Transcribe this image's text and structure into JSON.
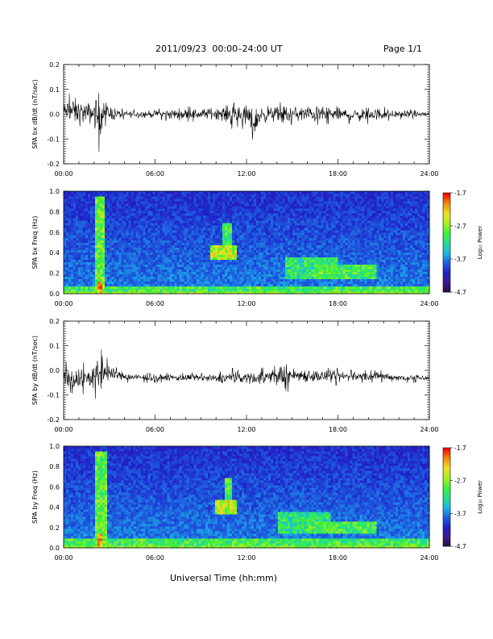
{
  "header": {
    "title": "2011/09/23  00:00–24:00 UT",
    "page": "Page 1/1"
  },
  "footer": {
    "xlabel": "Universal Time (hh:mm)"
  },
  "colors": {
    "trace": "#000000",
    "spectrogram_scale": [
      "#2a0a3a",
      "#3b1b8f",
      "#2020c8",
      "#1e5fe0",
      "#19b8e6",
      "#22e08a",
      "#3ff03a",
      "#a8f020",
      "#f0e020",
      "#f08a10",
      "#ff0000"
    ]
  },
  "chart_data": [
    {
      "type": "line",
      "ylabel": "SPA bx dB/dt (nT/sec)",
      "x_ticks": [
        "00:00",
        "06:00",
        "12:00",
        "18:00",
        "24:00"
      ],
      "xlim": [
        0,
        24
      ],
      "ylim": [
        -0.2,
        0.2
      ],
      "y_ticks": [
        "-0.2",
        "-0.1",
        "0.0",
        "0.1",
        "0.2"
      ],
      "baseline": 0.0,
      "envelope": {
        "x": [
          0,
          0.5,
          1,
          1.5,
          2,
          2.3,
          2.5,
          2.7,
          3,
          3.5,
          4,
          5,
          6,
          7,
          8,
          9,
          10,
          10.5,
          11,
          11.5,
          12,
          12.5,
          13,
          14,
          14.5,
          15,
          16,
          17,
          18,
          19,
          20,
          21,
          22,
          23,
          24
        ],
        "max": [
          0.06,
          0.09,
          0.08,
          0.06,
          0.08,
          0.13,
          0.1,
          0.07,
          0.05,
          0.03,
          0.02,
          0.02,
          0.02,
          0.03,
          0.03,
          0.03,
          0.04,
          0.04,
          0.06,
          0.05,
          0.06,
          0.04,
          0.05,
          0.04,
          0.06,
          0.04,
          0.05,
          0.04,
          0.04,
          0.03,
          0.04,
          0.03,
          0.02,
          0.02,
          0.02
        ],
        "min": [
          -0.04,
          -0.06,
          -0.07,
          -0.05,
          -0.07,
          -0.16,
          -0.08,
          -0.05,
          -0.04,
          -0.03,
          -0.02,
          -0.02,
          -0.02,
          -0.03,
          -0.03,
          -0.03,
          -0.03,
          -0.04,
          -0.06,
          -0.05,
          -0.07,
          -0.11,
          -0.05,
          -0.04,
          -0.07,
          -0.04,
          -0.05,
          -0.04,
          -0.04,
          -0.04,
          -0.04,
          -0.03,
          -0.02,
          -0.02,
          -0.02
        ]
      }
    },
    {
      "type": "heatmap",
      "ylabel": "SPA bx Freq (Hz)",
      "x_ticks": [
        "00:00",
        "06:00",
        "12:00",
        "18:00",
        "24:00"
      ],
      "xlim": [
        0,
        24
      ],
      "ylim": [
        0,
        1.0
      ],
      "y_ticks": [
        "0.0",
        "0.2",
        "0.4",
        "0.6",
        "0.8",
        "1.0"
      ],
      "colorbar": {
        "label": "Log₁₀ Power",
        "range": [
          -4.7,
          -1.7
        ],
        "ticks": [
          "-1.7",
          "-2.7",
          "-3.7",
          "-4.7"
        ]
      },
      "features": [
        {
          "t": [
            2.1,
            2.7
          ],
          "f": [
            0.0,
            0.95
          ],
          "level": 0.65
        },
        {
          "t": [
            2.2,
            2.6
          ],
          "f": [
            0.0,
            0.12
          ],
          "level": 0.9
        },
        {
          "t": [
            9.7,
            11.3
          ],
          "f": [
            0.33,
            0.47
          ],
          "level": 0.75
        },
        {
          "t": [
            10.5,
            11.0
          ],
          "f": [
            0.45,
            0.7
          ],
          "level": 0.6
        },
        {
          "t": [
            14.5,
            18.0
          ],
          "f": [
            0.15,
            0.35
          ],
          "level": 0.55
        },
        {
          "t": [
            16.5,
            20.5
          ],
          "f": [
            0.15,
            0.28
          ],
          "level": 0.6
        },
        {
          "t": [
            0,
            24
          ],
          "f": [
            0.0,
            0.08
          ],
          "level": 0.6
        }
      ]
    },
    {
      "type": "line",
      "ylabel": "SPA by dB/dt (nT/sec)",
      "x_ticks": [
        "00:00",
        "06:00",
        "12:00",
        "18:00",
        "24:00"
      ],
      "xlim": [
        0,
        24
      ],
      "ylim": [
        -0.2,
        0.2
      ],
      "y_ticks": [
        "-0.2",
        "-0.1",
        "0.0",
        "0.1",
        "0.2"
      ],
      "baseline": -0.03,
      "envelope": {
        "x": [
          0,
          0.5,
          1,
          1.5,
          2,
          2.3,
          2.5,
          2.7,
          3,
          3.5,
          4,
          5,
          6,
          7,
          8,
          9,
          10,
          10.5,
          11,
          11.5,
          12,
          12.5,
          13,
          14,
          14.5,
          15,
          16,
          17,
          18,
          19,
          20,
          21,
          22,
          23,
          24
        ],
        "max": [
          0.04,
          0.03,
          0.05,
          0.02,
          0.04,
          0.1,
          0.18,
          0.06,
          0.04,
          0.01,
          0.0,
          -0.01,
          -0.01,
          -0.01,
          -0.01,
          -0.01,
          -0.01,
          0.0,
          0.01,
          0.0,
          0.0,
          0.01,
          0.01,
          0.02,
          0.07,
          0.02,
          0.02,
          0.01,
          0.01,
          0.0,
          0.0,
          0.0,
          -0.01,
          -0.01,
          -0.01
        ],
        "min": [
          -0.1,
          -0.09,
          -0.12,
          -0.08,
          -0.1,
          -0.16,
          -0.13,
          -0.08,
          -0.06,
          -0.05,
          -0.05,
          -0.05,
          -0.05,
          -0.05,
          -0.05,
          -0.05,
          -0.06,
          -0.06,
          -0.07,
          -0.06,
          -0.06,
          -0.07,
          -0.07,
          -0.06,
          -0.11,
          -0.06,
          -0.06,
          -0.06,
          -0.06,
          -0.05,
          -0.05,
          -0.05,
          -0.05,
          -0.05,
          -0.05
        ]
      }
    },
    {
      "type": "heatmap",
      "ylabel": "SPA by Freq (Hz)",
      "x_ticks": [
        "00:00",
        "06:00",
        "12:00",
        "18:00",
        "24:00"
      ],
      "xlim": [
        0,
        24
      ],
      "ylim": [
        0,
        1.0
      ],
      "y_ticks": [
        "0.0",
        "0.2",
        "0.4",
        "0.6",
        "0.8",
        "1.0"
      ],
      "colorbar": {
        "label": "Log₁₀ Power",
        "range": [
          -4.7,
          -1.7
        ],
        "ticks": [
          "-1.7",
          "-2.7",
          "-3.7",
          "-4.7"
        ]
      },
      "features": [
        {
          "t": [
            2.1,
            2.8
          ],
          "f": [
            0.0,
            0.95
          ],
          "level": 0.65
        },
        {
          "t": [
            2.2,
            2.6
          ],
          "f": [
            0.0,
            0.15
          ],
          "level": 0.9
        },
        {
          "t": [
            10.0,
            11.3
          ],
          "f": [
            0.33,
            0.47
          ],
          "level": 0.75
        },
        {
          "t": [
            10.6,
            11.1
          ],
          "f": [
            0.45,
            0.7
          ],
          "level": 0.6
        },
        {
          "t": [
            14.0,
            17.5
          ],
          "f": [
            0.15,
            0.35
          ],
          "level": 0.55
        },
        {
          "t": [
            16.0,
            20.5
          ],
          "f": [
            0.15,
            0.25
          ],
          "level": 0.6
        },
        {
          "t": [
            0,
            24
          ],
          "f": [
            0.0,
            0.1
          ],
          "level": 0.6
        }
      ]
    }
  ]
}
